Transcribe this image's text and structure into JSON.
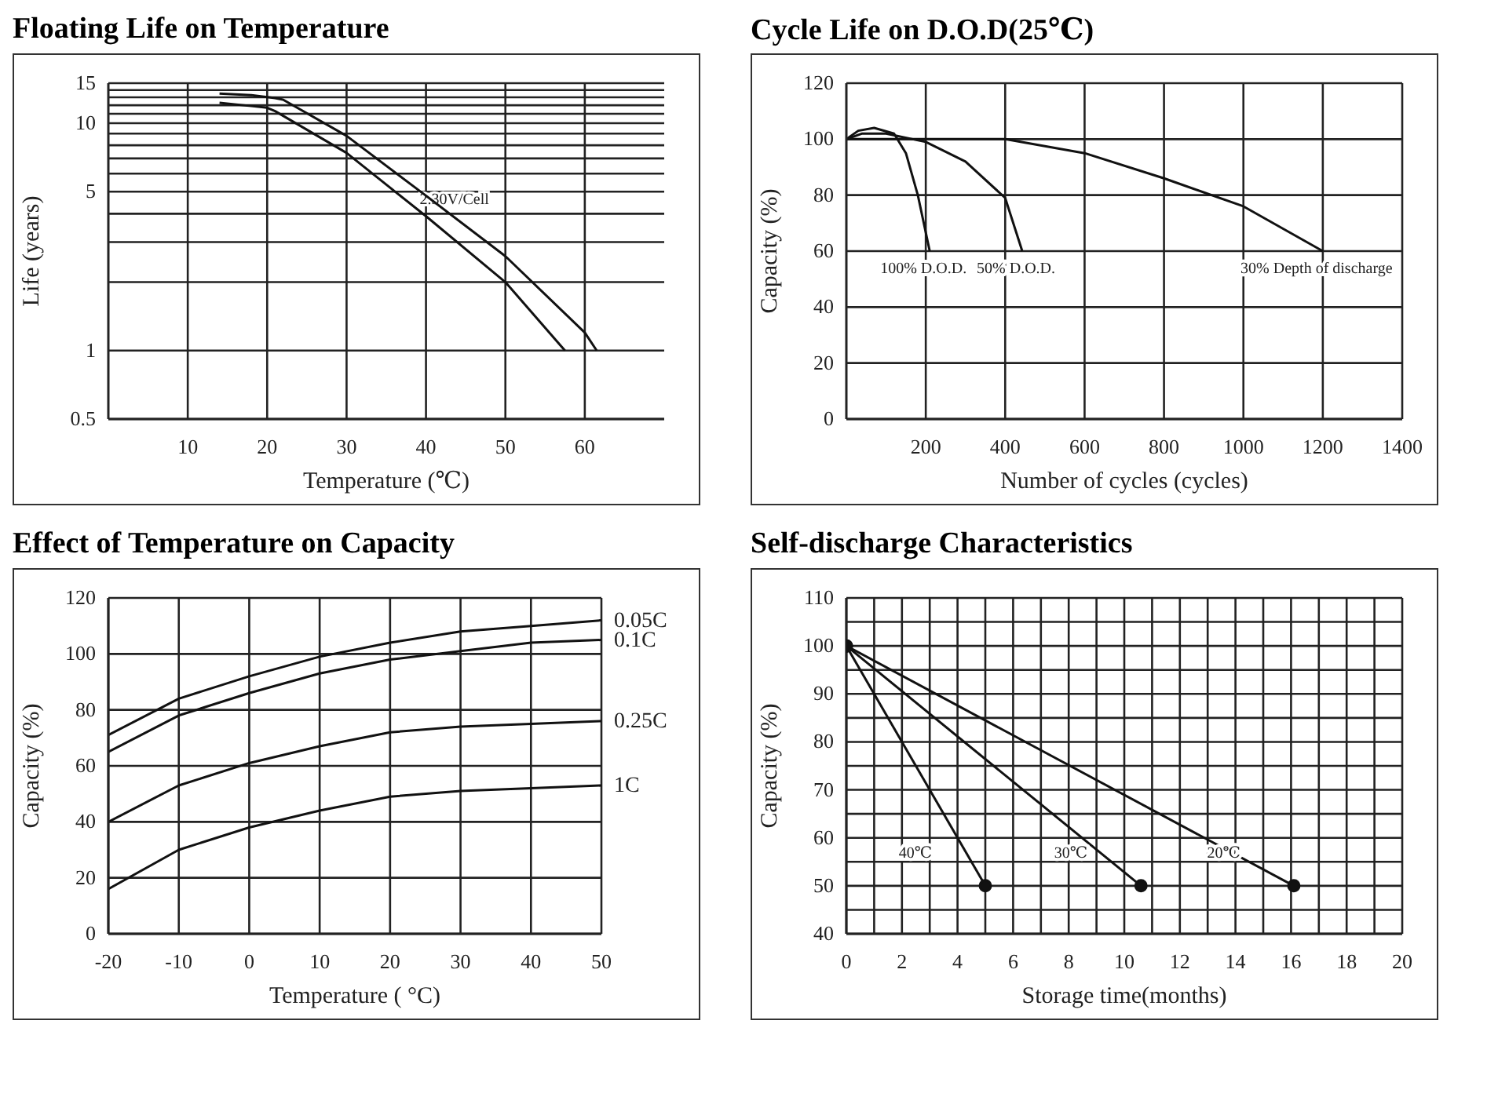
{
  "chart_data": [
    {
      "type": "line",
      "title": "Floating Life on Temperature",
      "xlabel": "Temperature (℃)",
      "ylabel": "Life (years)",
      "log": "y",
      "xlim": [
        0,
        70
      ],
      "xticks": [
        10,
        20,
        30,
        40,
        50,
        60
      ],
      "ylim": [
        0.5,
        15
      ],
      "yticks": [
        0.5,
        1,
        {
          "value": 2,
          "label": null
        },
        {
          "value": 3,
          "label": null
        },
        {
          "value": 4,
          "label": null
        },
        5,
        {
          "value": 6,
          "label": null
        },
        {
          "value": 7,
          "label": null
        },
        {
          "value": 8,
          "label": null
        },
        {
          "value": 9,
          "label": null
        },
        10,
        {
          "value": 11,
          "label": null
        },
        {
          "value": 12,
          "label": null
        },
        {
          "value": 13,
          "label": null
        },
        {
          "value": 14,
          "label": null
        },
        15
      ],
      "grid": true,
      "marker": "none",
      "line_style": "solid",
      "annotations": [
        "2.30V/Cell"
      ],
      "series": [
        {
          "color": "#111111",
          "x": [
            14,
            18,
            21,
            22,
            30,
            40,
            50,
            60,
            61.5
          ],
          "values": [
            13.5,
            13.3,
            12.9,
            12.7,
            8.8,
            4.8,
            2.6,
            1.2,
            1
          ]
        },
        {
          "color": "#111111",
          "x": [
            14,
            18,
            20,
            21,
            30,
            40,
            50,
            57.5
          ],
          "values": [
            12.3,
            11.9,
            11.7,
            11.3,
            7.4,
            3.9,
            2,
            1
          ]
        }
      ]
    },
    {
      "type": "line",
      "title": "Cycle Life on D.O.D(25℃)",
      "xlabel": "Number of cycles (cycles)",
      "ylabel": "Capacity  (%)",
      "xlim": [
        0,
        1400
      ],
      "xticks": [
        200,
        400,
        600,
        800,
        1000,
        1200,
        1400
      ],
      "ylim": [
        0,
        120
      ],
      "yticks": [
        0,
        20,
        40,
        60,
        80,
        100,
        120
      ],
      "grid": true,
      "marker": "none",
      "line_style": "solid",
      "series": [
        {
          "name": "100% D.O.D.",
          "color": "#111111",
          "x": [
            0,
            30,
            70,
            120,
            150,
            180,
            210
          ],
          "values": [
            100,
            103,
            104,
            102,
            95,
            80,
            60
          ]
        },
        {
          "name": "50% D.O.D.",
          "color": "#111111",
          "x": [
            0,
            40,
            100,
            200,
            300,
            400,
            443
          ],
          "values": [
            100,
            102,
            102,
            99,
            92,
            79,
            60
          ]
        },
        {
          "name": "30% Depth of  discharge",
          "color": "#111111",
          "x": [
            0,
            200,
            400,
            600,
            800,
            1000,
            1200
          ],
          "values": [
            100,
            100,
            100,
            95,
            86,
            76,
            60
          ]
        }
      ]
    },
    {
      "type": "line",
      "title": "Effect of Temperature on Capacity",
      "xlabel": "Temperature  ( °C)",
      "ylabel": "Capacity  (%)",
      "xlim": [
        -20,
        50
      ],
      "xticks": [
        -20,
        -10,
        0,
        10,
        20,
        30,
        40,
        50
      ],
      "ylim": [
        0,
        120
      ],
      "yticks": [
        0,
        20,
        40,
        60,
        80,
        100,
        120
      ],
      "grid": true,
      "marker": "none",
      "line_style": "solid",
      "series": [
        {
          "name": "0.05C",
          "color": "#111111",
          "x": [
            -20,
            -10,
            0,
            10,
            20,
            30,
            40,
            50
          ],
          "values": [
            71,
            84,
            92,
            99,
            104,
            108,
            110,
            112
          ]
        },
        {
          "name": "0.1C",
          "color": "#111111",
          "x": [
            -20,
            -10,
            0,
            10,
            20,
            30,
            40,
            50
          ],
          "values": [
            65,
            78,
            86,
            93,
            98,
            101,
            104,
            105
          ]
        },
        {
          "name": "0.25C",
          "color": "#111111",
          "x": [
            -20,
            -10,
            0,
            10,
            20,
            30,
            40,
            50
          ],
          "values": [
            40,
            53,
            61,
            67,
            72,
            74,
            75,
            76
          ]
        },
        {
          "name": "1C",
          "color": "#111111",
          "x": [
            -20,
            -10,
            0,
            10,
            20,
            30,
            40,
            50
          ],
          "values": [
            16,
            30,
            38,
            44,
            49,
            51,
            52,
            53
          ]
        }
      ]
    },
    {
      "type": "line",
      "title": "Self-discharge Characteristics",
      "xlabel": "Storage time(months)",
      "ylabel": "Capacity (%)",
      "xlim": [
        0,
        20
      ],
      "xticks": [
        0,
        {
          "value": 1,
          "label": null
        },
        2,
        {
          "value": 3,
          "label": null
        },
        4,
        {
          "value": 5,
          "label": null
        },
        6,
        {
          "value": 7,
          "label": null
        },
        8,
        {
          "value": 9,
          "label": null
        },
        10,
        {
          "value": 11,
          "label": null
        },
        12,
        {
          "value": 13,
          "label": null
        },
        14,
        {
          "value": 15,
          "label": null
        },
        16,
        {
          "value": 17,
          "label": null
        },
        18,
        {
          "value": 19,
          "label": null
        },
        20
      ],
      "ylim": [
        40,
        110
      ],
      "yticks": [
        40,
        {
          "value": 45,
          "label": null
        },
        50,
        {
          "value": 55,
          "label": null
        },
        60,
        {
          "value": 65,
          "label": null
        },
        70,
        {
          "value": 75,
          "label": null
        },
        80,
        {
          "value": 85,
          "label": null
        },
        90,
        {
          "value": 95,
          "label": null
        },
        100,
        {
          "value": 105,
          "label": null
        },
        110
      ],
      "grid": true,
      "marker": "circle",
      "line_style": "solid",
      "series": [
        {
          "name": "40℃",
          "color": "#111111",
          "x": [
            0,
            5
          ],
          "values": [
            100,
            50
          ]
        },
        {
          "name": "30℃",
          "color": "#111111",
          "x": [
            0,
            10.6
          ],
          "values": [
            100,
            50
          ]
        },
        {
          "name": "20℃",
          "color": "#111111",
          "x": [
            0,
            16.1
          ],
          "values": [
            100,
            50
          ]
        }
      ]
    }
  ]
}
